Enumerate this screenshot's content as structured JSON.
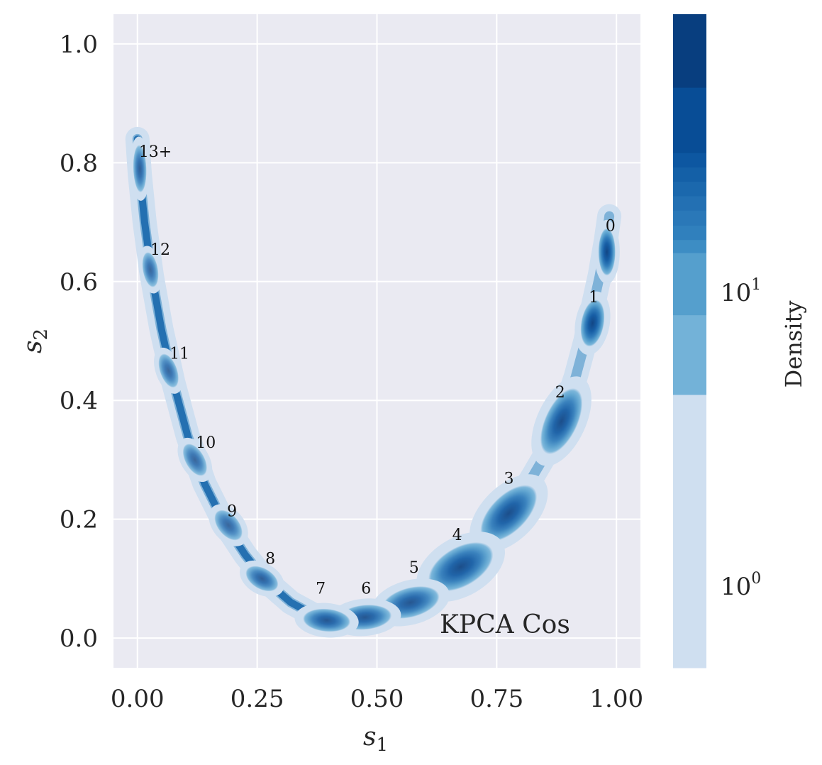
{
  "chart_data": {
    "type": "scatter",
    "title": "",
    "xlabel": "s",
    "xlabel_sub": "1",
    "ylabel": "s",
    "ylabel_sub": "2",
    "xlim": [
      -0.05,
      1.05
    ],
    "ylim": [
      -0.05,
      1.05
    ],
    "xticks": [
      0.0,
      0.25,
      0.5,
      0.75,
      1.0
    ],
    "xtick_labels": [
      "0.00",
      "0.25",
      "0.50",
      "0.75",
      "1.00"
    ],
    "yticks": [
      0.0,
      0.2,
      0.4,
      0.6,
      0.8,
      1.0
    ],
    "ytick_labels": [
      "0.0",
      "0.2",
      "0.4",
      "0.6",
      "0.8",
      "1.0"
    ],
    "grid": true,
    "annotation": "KPCA Cos",
    "colorbar": {
      "label": "Density",
      "scale": "log",
      "tick_base": "10",
      "ticks": [
        {
          "value": 1,
          "exponent": "0"
        },
        {
          "value": 10,
          "exponent": "1"
        }
      ],
      "colors": [
        "#cfdff0",
        "#73b2d8",
        "#559fcd",
        "#3d8dc4",
        "#3080bd",
        "#2a78b8",
        "#2370b3",
        "#1b68ad",
        "#1460a7",
        "#0d57a1",
        "#084d96",
        "#083e7f"
      ]
    },
    "clusters": [
      {
        "label": "0",
        "x": 0.98,
        "y": 0.65,
        "w": 0.012,
        "h": 0.04,
        "angle": 90,
        "intensity": 0.95
      },
      {
        "label": "1",
        "x": 0.95,
        "y": 0.53,
        "w": 0.018,
        "h": 0.04,
        "angle": 80,
        "intensity": 0.95
      },
      {
        "label": "2",
        "x": 0.885,
        "y": 0.365,
        "w": 0.028,
        "h": 0.06,
        "angle": 65,
        "intensity": 0.9
      },
      {
        "label": "3",
        "x": 0.775,
        "y": 0.21,
        "w": 0.032,
        "h": 0.06,
        "angle": 45,
        "intensity": 0.9
      },
      {
        "label": "4",
        "x": 0.675,
        "y": 0.12,
        "w": 0.035,
        "h": 0.06,
        "angle": 30,
        "intensity": 0.9
      },
      {
        "label": "5",
        "x": 0.57,
        "y": 0.06,
        "w": 0.025,
        "h": 0.05,
        "angle": 15,
        "intensity": 0.85
      },
      {
        "label": "6",
        "x": 0.475,
        "y": 0.035,
        "w": 0.02,
        "h": 0.045,
        "angle": 5,
        "intensity": 0.85
      },
      {
        "label": "7",
        "x": 0.395,
        "y": 0.03,
        "w": 0.018,
        "h": 0.04,
        "angle": -5,
        "intensity": 0.85
      },
      {
        "label": "8",
        "x": 0.26,
        "y": 0.1,
        "w": 0.016,
        "h": 0.03,
        "angle": -30,
        "intensity": 0.8
      },
      {
        "label": "9",
        "x": 0.19,
        "y": 0.19,
        "w": 0.016,
        "h": 0.03,
        "angle": -50,
        "intensity": 0.75
      },
      {
        "label": "10",
        "x": 0.12,
        "y": 0.3,
        "w": 0.014,
        "h": 0.03,
        "angle": -60,
        "intensity": 0.75
      },
      {
        "label": "11",
        "x": 0.065,
        "y": 0.45,
        "w": 0.012,
        "h": 0.03,
        "angle": -70,
        "intensity": 0.75
      },
      {
        "label": "12",
        "x": 0.027,
        "y": 0.62,
        "w": 0.01,
        "h": 0.03,
        "angle": -80,
        "intensity": 0.75
      },
      {
        "label": "13+",
        "x": 0.005,
        "y": 0.79,
        "w": 0.008,
        "h": 0.04,
        "angle": -88,
        "intensity": 0.8
      }
    ],
    "cluster_label_offsets": [
      {
        "label": "0",
        "x": 0.98,
        "y": 0.685
      },
      {
        "label": "1",
        "x": 0.945,
        "y": 0.565
      },
      {
        "label": "2",
        "x": 0.875,
        "y": 0.405
      },
      {
        "label": "3",
        "x": 0.768,
        "y": 0.26
      },
      {
        "label": "4",
        "x": 0.66,
        "y": 0.165
      },
      {
        "label": "5",
        "x": 0.57,
        "y": 0.11
      },
      {
        "label": "6",
        "x": 0.47,
        "y": 0.075
      },
      {
        "label": "7",
        "x": 0.375,
        "y": 0.075
      },
      {
        "label": "8",
        "x": 0.27,
        "y": 0.125
      },
      {
        "label": "9",
        "x": 0.19,
        "y": 0.205
      },
      {
        "label": "10",
        "x": 0.125,
        "y": 0.32
      },
      {
        "label": "11",
        "x": 0.07,
        "y": 0.47
      },
      {
        "label": "12",
        "x": 0.03,
        "y": 0.645
      },
      {
        "label": "13+",
        "x": 0.006,
        "y": 0.81
      }
    ],
    "curve": [
      [
        0.0,
        0.84
      ],
      [
        0.005,
        0.78
      ],
      [
        0.015,
        0.7
      ],
      [
        0.03,
        0.61
      ],
      [
        0.05,
        0.52
      ],
      [
        0.075,
        0.43
      ],
      [
        0.105,
        0.34
      ],
      [
        0.14,
        0.26
      ],
      [
        0.18,
        0.195
      ],
      [
        0.225,
        0.14
      ],
      [
        0.27,
        0.095
      ],
      [
        0.32,
        0.06
      ],
      [
        0.37,
        0.038
      ],
      [
        0.42,
        0.03
      ],
      [
        0.47,
        0.035
      ],
      [
        0.52,
        0.045
      ],
      [
        0.57,
        0.065
      ],
      [
        0.62,
        0.09
      ],
      [
        0.67,
        0.12
      ],
      [
        0.72,
        0.16
      ],
      [
        0.77,
        0.205
      ],
      [
        0.82,
        0.265
      ],
      [
        0.86,
        0.32
      ],
      [
        0.89,
        0.38
      ],
      [
        0.915,
        0.44
      ],
      [
        0.935,
        0.5
      ],
      [
        0.95,
        0.555
      ],
      [
        0.965,
        0.61
      ],
      [
        0.978,
        0.67
      ],
      [
        0.985,
        0.71
      ]
    ]
  }
}
